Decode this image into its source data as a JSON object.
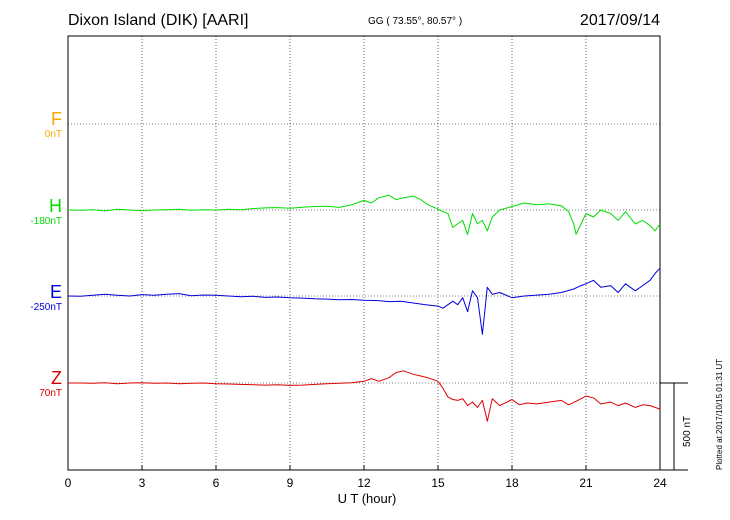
{
  "header": {
    "station": "Dixon Island (DIK)  [AARI]",
    "coords": "GG ( 73.55°,  80.57° )",
    "date": "2017/09/14"
  },
  "plotted_note": "Plotted at 2017/10/15 01:31  UT",
  "scale_label": "500 nT",
  "colors": {
    "F": "#FFA500",
    "H": "#00DD00",
    "E": "#0000DD",
    "Z": "#DD0000"
  },
  "chart_data": {
    "type": "line",
    "xlabel": "U T (hour)",
    "xlim": [
      0,
      24
    ],
    "xticks": [
      "0",
      "3",
      "6",
      "9",
      "12",
      "15",
      "18",
      "21",
      "24"
    ],
    "series": [
      {
        "name": "F",
        "baseline_label": "0nT",
        "x": [],
        "values": []
      },
      {
        "name": "H",
        "baseline_label": "-180nT",
        "x": [
          0,
          0.5,
          1,
          1.5,
          2,
          2.5,
          3,
          3.5,
          4,
          4.5,
          5,
          5.5,
          6,
          6.5,
          7,
          7.5,
          8,
          8.5,
          9,
          9.5,
          10,
          10.5,
          11,
          11.5,
          12,
          12.3,
          12.6,
          13,
          13.3,
          13.6,
          14,
          14.3,
          14.6,
          15,
          15.2,
          15.4,
          15.6,
          15.8,
          16,
          16.2,
          16.4,
          16.6,
          16.8,
          17,
          17.2,
          17.5,
          18,
          18.5,
          19,
          19.5,
          20,
          20.3,
          20.5,
          20.6,
          20.8,
          21,
          21.3,
          21.6,
          22,
          22.3,
          22.6,
          23,
          23.3,
          23.6,
          23.8,
          24
        ],
        "values": [
          -180,
          -182,
          -178,
          -185,
          -176,
          -180,
          -184,
          -180,
          -178,
          -176,
          -182,
          -178,
          -180,
          -176,
          -178,
          -172,
          -168,
          -166,
          -170,
          -164,
          -160,
          -158,
          -165,
          -150,
          -125,
          -140,
          -110,
          -95,
          -120,
          -110,
          -100,
          -120,
          -150,
          -175,
          -190,
          -200,
          -280,
          -260,
          -240,
          -320,
          -200,
          -260,
          -240,
          -300,
          -220,
          -180,
          -160,
          -140,
          -150,
          -145,
          -155,
          -190,
          -260,
          -320,
          -260,
          -200,
          -220,
          -180,
          -200,
          -240,
          -190,
          -260,
          -240,
          -270,
          -300,
          -260
        ]
      },
      {
        "name": "E",
        "baseline_label": "-250nT",
        "x": [
          0,
          0.5,
          1,
          1.5,
          2,
          2.5,
          3,
          3.5,
          4,
          4.5,
          5,
          5.5,
          6,
          6.5,
          7,
          7.5,
          8,
          8.5,
          9,
          9.5,
          10,
          10.5,
          11,
          11.5,
          12,
          12.5,
          13,
          13.5,
          14,
          14.5,
          15,
          15.2,
          15.4,
          15.6,
          15.8,
          16,
          16.2,
          16.4,
          16.6,
          16.8,
          17,
          17.2,
          17.5,
          18,
          18.5,
          19,
          19.5,
          20,
          20.5,
          20.8,
          21,
          21.3,
          21.6,
          22,
          22.3,
          22.6,
          23,
          23.3,
          23.6,
          23.8,
          24
        ],
        "values": [
          -250,
          -252,
          -246,
          -240,
          -246,
          -250,
          -242,
          -246,
          -240,
          -236,
          -248,
          -244,
          -246,
          -250,
          -254,
          -252,
          -258,
          -256,
          -260,
          -262,
          -266,
          -268,
          -272,
          -270,
          -274,
          -276,
          -282,
          -280,
          -290,
          -300,
          -308,
          -320,
          -300,
          -280,
          -300,
          -260,
          -340,
          -220,
          -260,
          -470,
          -200,
          -240,
          -230,
          -260,
          -250,
          -245,
          -240,
          -230,
          -210,
          -190,
          -180,
          -160,
          -200,
          -190,
          -230,
          -180,
          -220,
          -190,
          -160,
          -120,
          -90
        ]
      },
      {
        "name": "Z",
        "baseline_label": "70nT",
        "x": [
          0,
          0.5,
          1,
          1.5,
          2,
          2.5,
          3,
          3.5,
          4,
          4.5,
          5,
          5.5,
          6,
          6.5,
          7,
          7.5,
          8,
          8.5,
          9,
          9.5,
          10,
          10.5,
          11,
          11.5,
          12,
          12.3,
          12.6,
          13,
          13.3,
          13.6,
          14,
          14.3,
          14.6,
          15,
          15.2,
          15.4,
          15.6,
          15.8,
          16,
          16.2,
          16.4,
          16.6,
          16.8,
          17,
          17.2,
          17.5,
          17.8,
          18,
          18.3,
          18.6,
          19,
          19.5,
          20,
          20.3,
          20.6,
          20.8,
          21,
          21.3,
          21.6,
          22,
          22.3,
          22.6,
          23,
          23.3,
          23.6,
          24
        ],
        "values": [
          70,
          70,
          68,
          72,
          66,
          70,
          72,
          68,
          70,
          66,
          68,
          70,
          66,
          64,
          62,
          60,
          58,
          60,
          56,
          58,
          62,
          66,
          68,
          72,
          80,
          95,
          80,
          100,
          130,
          140,
          120,
          110,
          100,
          80,
          40,
          -10,
          -25,
          -30,
          -20,
          -60,
          -40,
          -70,
          -30,
          -150,
          -20,
          -60,
          -40,
          -25,
          -55,
          -45,
          -50,
          -40,
          -30,
          -55,
          -35,
          -20,
          -5,
          -15,
          -50,
          -40,
          -60,
          -45,
          -70,
          -55,
          -60,
          -80
        ]
      }
    ]
  }
}
